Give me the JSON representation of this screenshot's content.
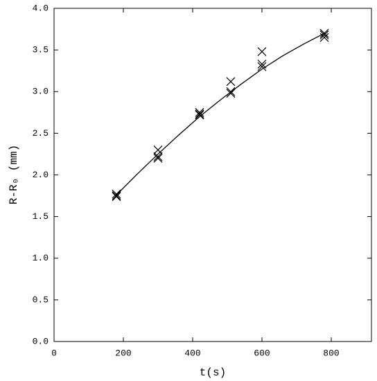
{
  "chart_data": {
    "type": "scatter",
    "xlabel": "t(s)",
    "ylabel": "R-R₀ (mm)",
    "xlim": [
      0,
      916
    ],
    "ylim": [
      0,
      4.0
    ],
    "xticks": [
      0,
      200,
      400,
      600,
      800
    ],
    "yticks": [
      {
        "value": 0,
        "label": "0.0"
      },
      0.5,
      {
        "value": 1,
        "label": "1.0"
      },
      1.5,
      {
        "value": 2,
        "label": "2.0"
      },
      2.5,
      {
        "value": 3,
        "label": "3.0"
      },
      3.5,
      {
        "value": 4,
        "label": "4.0"
      }
    ],
    "series": [
      {
        "type": "scatter",
        "color": "#000000",
        "x": [
          180,
          180,
          180,
          300,
          300,
          300,
          420,
          420,
          420,
          510,
          510,
          510,
          600,
          600,
          600,
          780,
          780,
          780
        ],
        "values": [
          1.75,
          1.77,
          1.74,
          2.3,
          2.22,
          2.2,
          2.75,
          2.73,
          2.72,
          3.12,
          3.0,
          2.98,
          3.48,
          3.33,
          3.3,
          3.7,
          3.68,
          3.65
        ]
      },
      {
        "type": "line",
        "color": "#000000",
        "x": [
          180,
          240,
          300,
          360,
          420,
          480,
          540,
          600,
          660,
          720,
          780
        ],
        "values": [
          1.76,
          2.01,
          2.25,
          2.48,
          2.7,
          2.9,
          3.09,
          3.27,
          3.43,
          3.57,
          3.7
        ]
      }
    ]
  }
}
